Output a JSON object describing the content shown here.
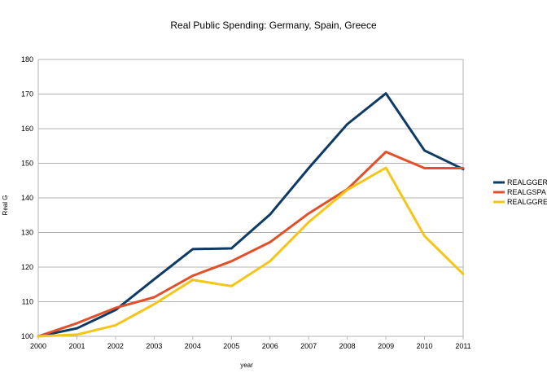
{
  "chart_data": {
    "type": "line",
    "title": "Real Public Spending: Germany, Spain, Greece",
    "xlabel": "year",
    "ylabel": "Real G",
    "x": [
      "2000",
      "2001",
      "2002",
      "2003",
      "2004",
      "2005",
      "2006",
      "2007",
      "2008",
      "2009",
      "2010",
      "2011"
    ],
    "ylim": [
      100,
      180
    ],
    "yticks": [
      100,
      110,
      120,
      130,
      140,
      150,
      160,
      170,
      180
    ],
    "grid": "horizontal",
    "legend": "right",
    "series": [
      {
        "name": "REALGGER",
        "color": "#0d3b66",
        "values": [
          100,
          102.3,
          107.6,
          116.5,
          125.2,
          125.4,
          135.2,
          148.6,
          161.3,
          170.2,
          153.7,
          148.3
        ]
      },
      {
        "name": "REALGSPA",
        "color": "#e1502a",
        "values": [
          100,
          103.8,
          108.2,
          111.3,
          117.5,
          121.7,
          127.2,
          135.5,
          142.5,
          153.3,
          148.6,
          148.6
        ]
      },
      {
        "name": "REALGGRE",
        "color": "#f5c518",
        "values": [
          100,
          100.5,
          103.2,
          109.3,
          116.3,
          114.5,
          121.7,
          133.0,
          142.3,
          148.7,
          129.0,
          118.0
        ]
      }
    ]
  }
}
